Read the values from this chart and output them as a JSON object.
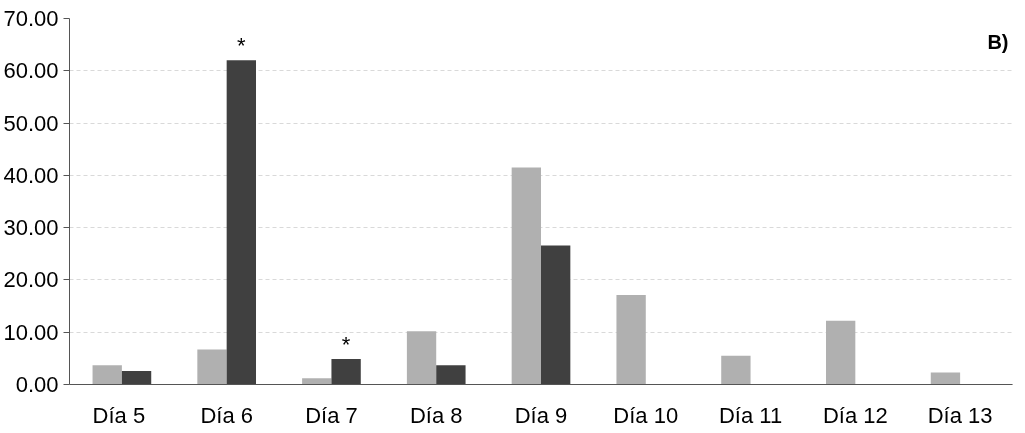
{
  "chart_data": {
    "type": "bar",
    "categories": [
      "Día  5",
      "Día 6",
      "Día 7",
      "Día 8",
      "Día 9",
      "Día 10",
      "Día 11",
      "Día 12",
      "Día 13"
    ],
    "series": [
      {
        "color": "#b0b0b0",
        "values": [
          3.7,
          6.7,
          1.2,
          10.2,
          41.5,
          17.1,
          5.5,
          12.2,
          2.3
        ]
      },
      {
        "color": "#404040",
        "values": [
          2.6,
          62.0,
          4.9,
          3.7,
          26.6,
          0,
          0,
          0,
          0
        ]
      }
    ],
    "ylim": [
      0,
      70
    ],
    "yticks": [
      {
        "value": 0,
        "label": "0.00"
      },
      {
        "value": 10,
        "label": "10.00"
      },
      {
        "value": 20,
        "label": "20.00"
      },
      {
        "value": 30,
        "label": "30.00"
      },
      {
        "value": 40,
        "label": "40.00"
      },
      {
        "value": 50,
        "label": "50.00"
      },
      {
        "value": 60,
        "label": "60.00"
      },
      {
        "value": 70,
        "label": "70.00"
      }
    ],
    "grid": "y",
    "annotations": [
      {
        "text": "*",
        "x": "Día 6",
        "y": 62.0
      },
      {
        "text": "*",
        "x": "Día 7",
        "y": 4.9
      },
      "B)"
    ]
  }
}
